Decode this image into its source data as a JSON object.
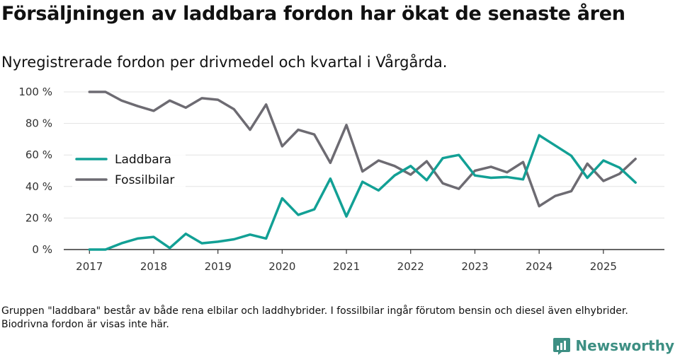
{
  "title": "Försäljningen av laddbara fordon har ökat de senaste åren",
  "subtitle": "Nyregistrerade fordon per drivmedel och kvartal i Vårgårda.",
  "footnote": "Gruppen \"laddbara\" består av både rena elbilar och laddhybrider. I fossilbilar ingår förutom bensin och diesel även elhybrider. Biodrivna fordon är visas inte här.",
  "brand": {
    "name": "Newsworthy",
    "icon": "bar-chart-logo-icon",
    "color": "#3d8f83"
  },
  "colors": {
    "laddbara": "#12a095",
    "fossilbilar": "#6d6b72",
    "grid": "#e3e3e3",
    "axis": "#333333"
  },
  "chart_data": {
    "type": "line",
    "title": "Försäljningen av laddbara fordon har ökat de senaste åren",
    "subtitle": "Nyregistrerade fordon per drivmedel och kvartal i Vårgårda.",
    "xlabel": "",
    "ylabel": "",
    "x": [
      2017.0,
      2017.25,
      2017.5,
      2017.75,
      2018.0,
      2018.25,
      2018.5,
      2018.75,
      2019.0,
      2019.25,
      2019.5,
      2019.75,
      2020.0,
      2020.25,
      2020.5,
      2020.75,
      2021.0,
      2021.25,
      2021.5,
      2021.75,
      2022.0,
      2022.25,
      2022.5,
      2022.75,
      2023.0,
      2023.25,
      2023.5,
      2023.75,
      2024.0,
      2024.25,
      2024.5,
      2024.75,
      2025.0,
      2025.25,
      2025.5
    ],
    "series": [
      {
        "name": "Laddbara",
        "color": "#12a095",
        "values": [
          0,
          0,
          4,
          7,
          8,
          1,
          10,
          4,
          5,
          6.5,
          9.5,
          7,
          32.5,
          22,
          25.5,
          45,
          21,
          43,
          37.5,
          47,
          53,
          44,
          58,
          60,
          47,
          45.5,
          46,
          44.5,
          72.5,
          66,
          59.5,
          45.5,
          56.5,
          52,
          42.5
        ]
      },
      {
        "name": "Fossilbilar",
        "color": "#6d6b72",
        "values": [
          100,
          100,
          94.5,
          91,
          88,
          94.5,
          90,
          96,
          95,
          89,
          76,
          92,
          65.5,
          76,
          73,
          55,
          79,
          49.5,
          56.5,
          53,
          47.5,
          56,
          42,
          38.5,
          50,
          52.5,
          49,
          55.5,
          27.5,
          34,
          37,
          54.5,
          43.5,
          48,
          57.5
        ]
      }
    ],
    "x_ticks": [
      "2017",
      "2018",
      "2019",
      "2020",
      "2021",
      "2022",
      "2023",
      "2024",
      "2025"
    ],
    "x_tick_values": [
      2017,
      2018,
      2019,
      2020,
      2021,
      2022,
      2023,
      2024,
      2025
    ],
    "y_ticks": [
      "0 %",
      "20 %",
      "40 %",
      "60 %",
      "80 %",
      "100 %"
    ],
    "y_tick_values": [
      0,
      20,
      40,
      60,
      80,
      100
    ],
    "xlim": [
      2016.6,
      2025.95
    ],
    "ylim": [
      0,
      100
    ],
    "grid": true,
    "legend": {
      "placement": "left-center",
      "entries": [
        "Laddbara",
        "Fossilbilar"
      ]
    }
  }
}
